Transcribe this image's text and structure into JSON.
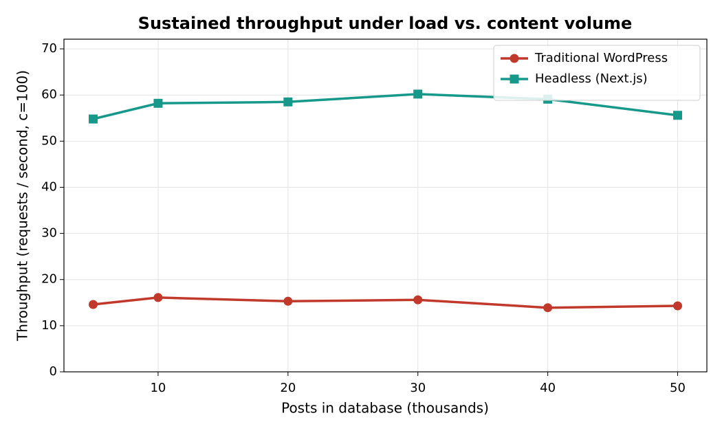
{
  "chart_data": {
    "type": "line",
    "title": "Sustained throughput under load vs. content volume",
    "x_label": "Posts in database (thousands)",
    "y_label": "Throughput (requests / second, c=100)",
    "x": [
      5,
      10,
      20,
      30,
      40,
      50
    ],
    "series": [
      {
        "name": "Traditional WordPress",
        "color": "#c0392b",
        "marker": "circle",
        "values": [
          14.6,
          16.1,
          15.3,
          15.6,
          13.9,
          14.3
        ]
      },
      {
        "name": "Headless (Next.js)",
        "color": "#16998a",
        "marker": "square",
        "values": [
          54.8,
          58.2,
          58.5,
          60.2,
          59.1,
          55.6
        ]
      }
    ],
    "xlim": [
      2.75,
      52.25
    ],
    "xticks": [
      10,
      20,
      30,
      40,
      50
    ],
    "ylim": [
      0,
      72.1
    ],
    "yticks": [
      0,
      10,
      20,
      30,
      40,
      50,
      60,
      70
    ],
    "grid": true,
    "legend": "upper-right"
  }
}
